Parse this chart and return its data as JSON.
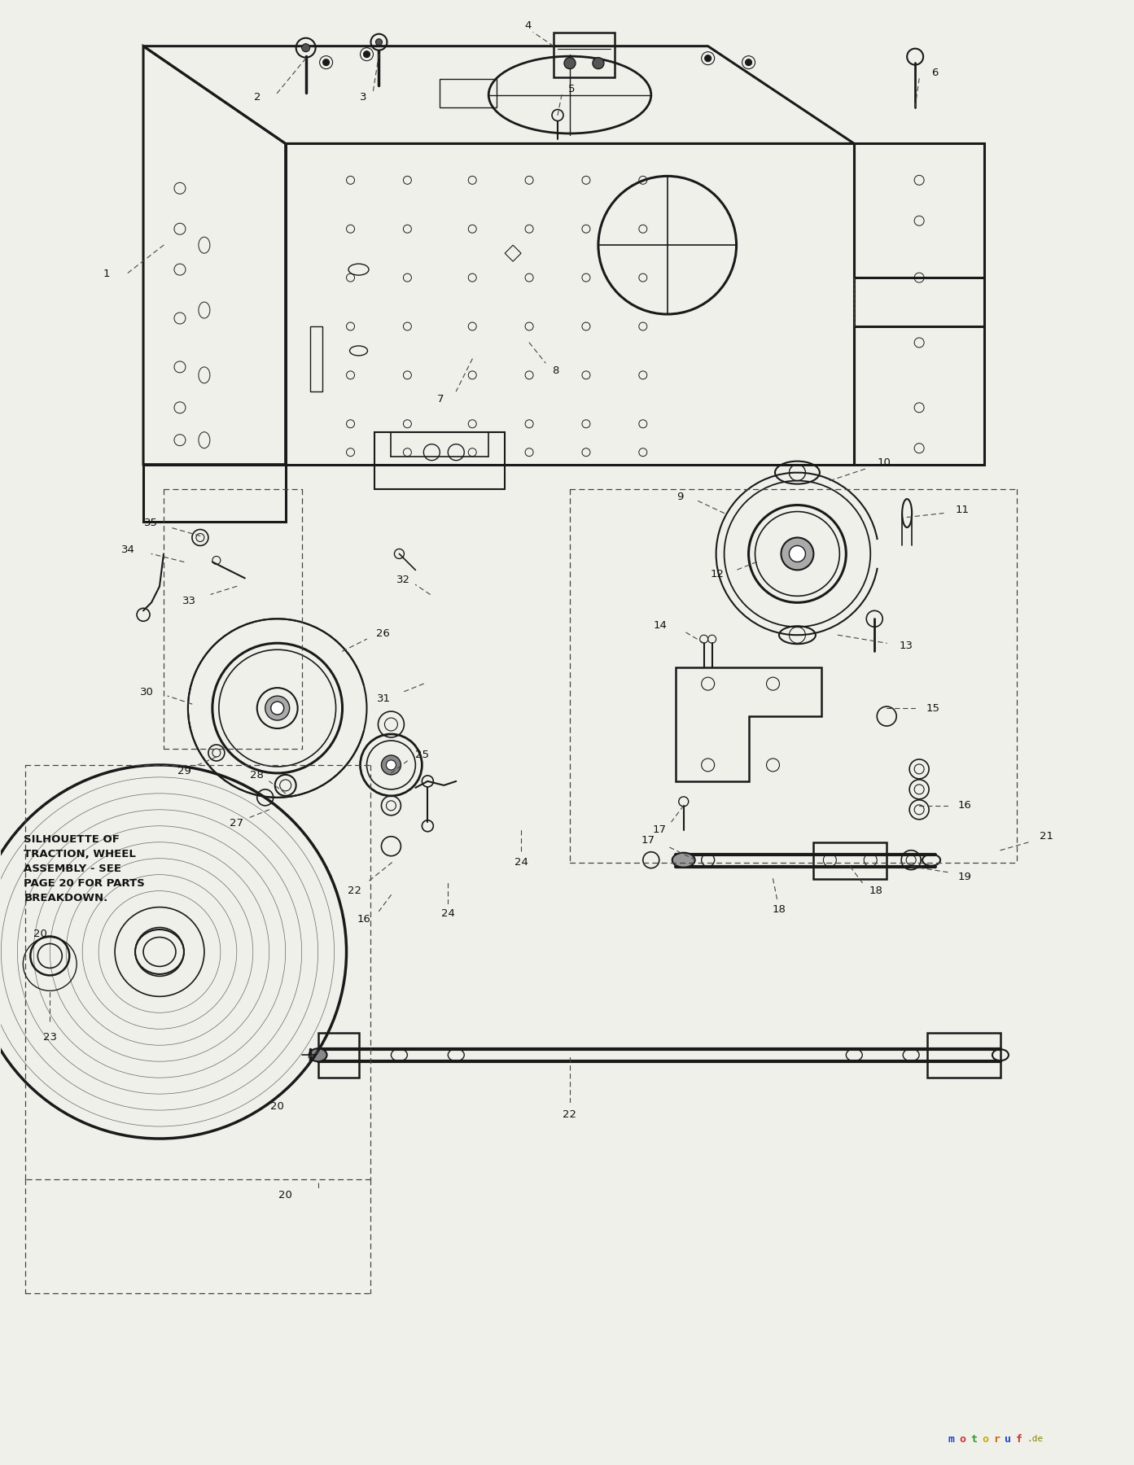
{
  "background_color": "#f0f0eb",
  "line_color": "#1a1a1a",
  "dashed_color": "#444444",
  "text_color": "#111111",
  "fig_width": 13.93,
  "fig_height": 18.0,
  "note_text": "SILHOUETTE OF\nTRACTION, WHEEL\nASSEMBLY - SEE\nPAGE 20 FOR PARTS\nBREAKDOWN.",
  "note_fontsize": 9.5,
  "watermark_text": "motoruf",
  "watermark_suffix": ".de"
}
